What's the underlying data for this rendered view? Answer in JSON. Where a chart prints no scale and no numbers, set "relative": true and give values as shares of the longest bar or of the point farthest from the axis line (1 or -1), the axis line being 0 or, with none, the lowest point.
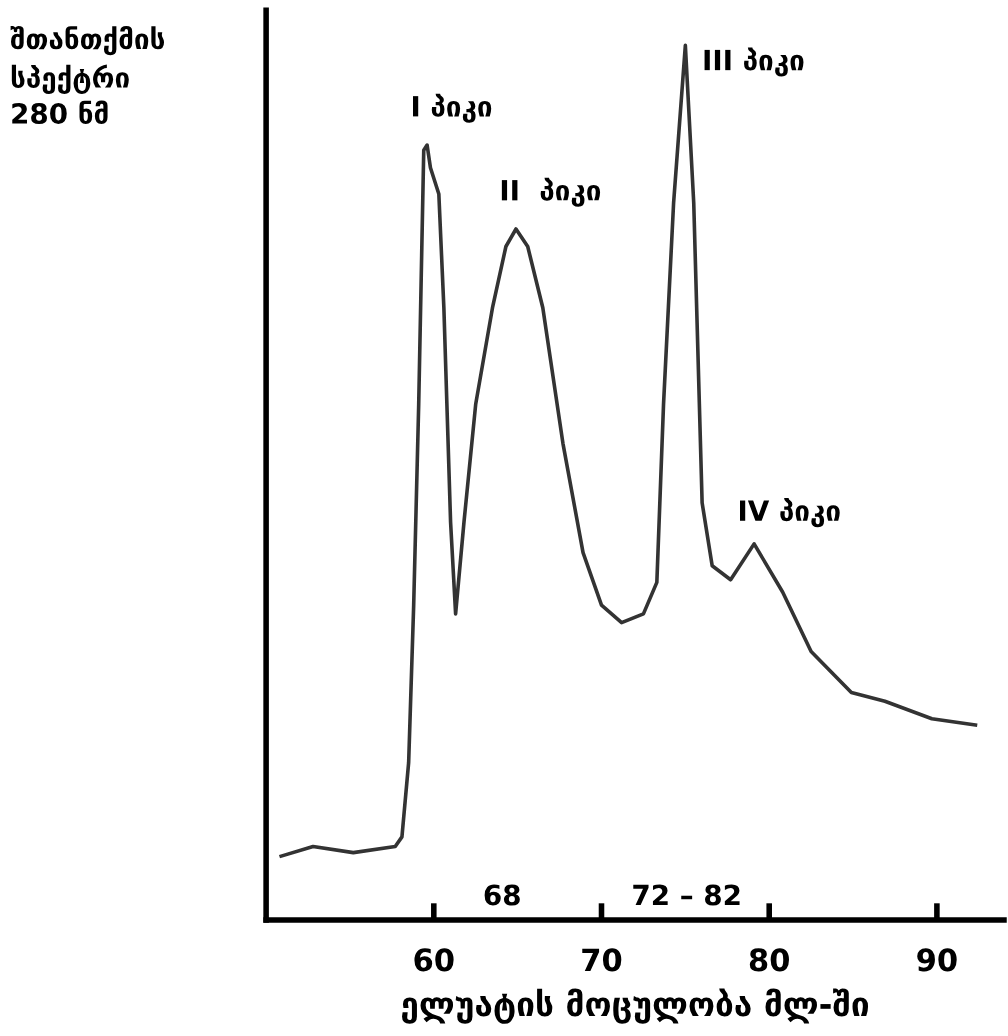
{
  "chart_data": {
    "type": "line",
    "relative": true,
    "title": "შთანთქმის\nსპექტრი\n280 ნმ",
    "xlabel": "ელუატის მოცულობა მლ-ში",
    "xlim": [
      50,
      94
    ],
    "xticks": [
      60,
      70,
      80,
      90
    ],
    "grid": false,
    "legend": false,
    "marker": "none",
    "line_style": "solid",
    "series": [
      {
        "color": "#333333",
        "x": [
          50.9,
          52.8,
          55.2,
          57.7,
          58.1,
          58.5,
          58.8,
          59.1,
          59.4,
          59.6,
          59.8,
          60.3,
          60.6,
          61.0,
          61.3,
          61.8,
          62.5,
          63.5,
          64.3,
          64.9,
          65.6,
          66.5,
          67.7,
          68.9,
          70.0,
          71.2,
          72.5,
          73.3,
          73.7,
          74.3,
          75.0,
          75.5,
          76.0,
          76.6,
          77.7,
          79.1,
          80.8,
          82.5,
          84.9,
          86.9,
          89.7,
          92.3
        ],
        "values": [
          0.073,
          0.084,
          0.077,
          0.084,
          0.095,
          0.18,
          0.36,
          0.59,
          0.88,
          0.886,
          0.86,
          0.83,
          0.7,
          0.455,
          0.35,
          0.455,
          0.59,
          0.7,
          0.77,
          0.79,
          0.77,
          0.7,
          0.545,
          0.42,
          0.36,
          0.34,
          0.35,
          0.386,
          0.59,
          0.82,
          1.0,
          0.82,
          0.477,
          0.405,
          0.389,
          0.43,
          0.375,
          0.307,
          0.26,
          0.25,
          0.23,
          0.223
        ]
      }
    ],
    "annotations": [
      {
        "text": "I პიკი",
        "x": 59.6,
        "y": 0.886
      },
      {
        "text": "II  პიკი",
        "x": 64.9,
        "y": 0.79
      },
      {
        "text": "III პიკი",
        "x": 75.0,
        "y": 1.0
      },
      {
        "text": "IV პიკი",
        "x": 79.1,
        "y": 0.43
      },
      "68",
      "72 – 82"
    ]
  }
}
